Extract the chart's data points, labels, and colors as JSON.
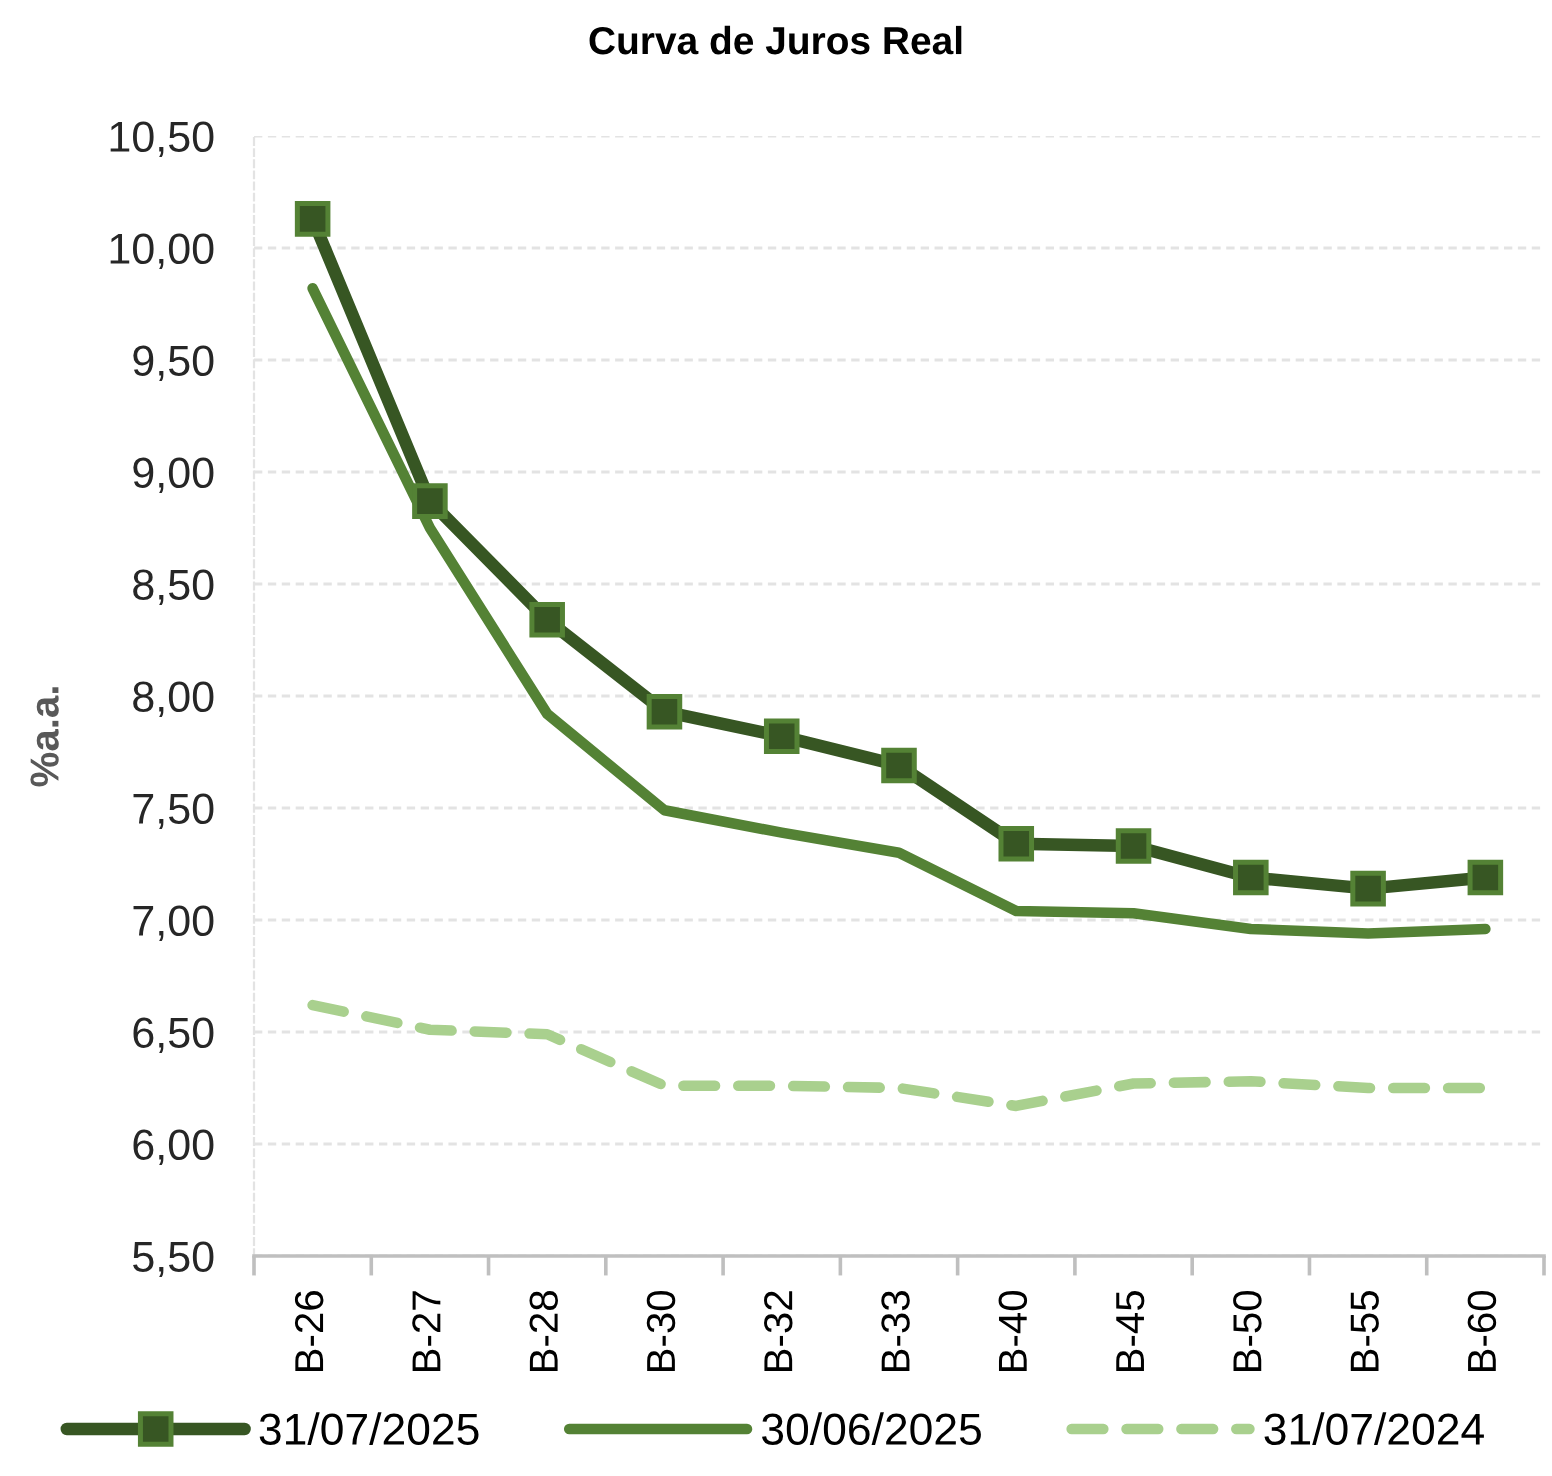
{
  "chart_data": {
    "type": "line",
    "title": "Curva de Juros Real",
    "ylabel": "%a.a.",
    "categories": [
      "B-26",
      "B-27",
      "B-28",
      "B-30",
      "B-32",
      "B-33",
      "B-40",
      "B-45",
      "B-50",
      "B-55",
      "B-60"
    ],
    "series": [
      {
        "name": "31/07/2025",
        "color": "#375623",
        "marker": "square",
        "line_style": "solid",
        "values": [
          10.13,
          8.87,
          8.34,
          7.93,
          7.82,
          7.69,
          7.34,
          7.33,
          7.19,
          7.14,
          7.19
        ]
      },
      {
        "name": "30/06/2025",
        "color": "#548235",
        "line_style": "solid",
        "values": [
          9.82,
          8.75,
          7.92,
          7.49,
          7.39,
          7.3,
          7.04,
          7.03,
          6.96,
          6.94,
          6.96
        ]
      },
      {
        "name": "31/07/2024",
        "color": "#a9d08e",
        "line_style": "dashed",
        "values": [
          6.62,
          6.51,
          6.49,
          6.26,
          6.26,
          6.25,
          6.17,
          6.27,
          6.28,
          6.25,
          6.25
        ]
      }
    ],
    "ylim": [
      5.5,
      10.5
    ],
    "yticks": [
      {
        "value": 5.5,
        "label": "5,50"
      },
      {
        "value": 6.0,
        "label": "6,00"
      },
      {
        "value": 6.5,
        "label": "6,50"
      },
      {
        "value": 7.0,
        "label": "7,00"
      },
      {
        "value": 7.5,
        "label": "7,50"
      },
      {
        "value": 8.0,
        "label": "8,00"
      },
      {
        "value": 8.5,
        "label": "8,50"
      },
      {
        "value": 9.0,
        "label": "9,00"
      },
      {
        "value": 9.5,
        "label": "9,50"
      },
      {
        "value": 10.0,
        "label": "10,00"
      },
      {
        "value": 10.5,
        "label": "10,50"
      }
    ],
    "grid": "y",
    "legend": "bottom"
  }
}
